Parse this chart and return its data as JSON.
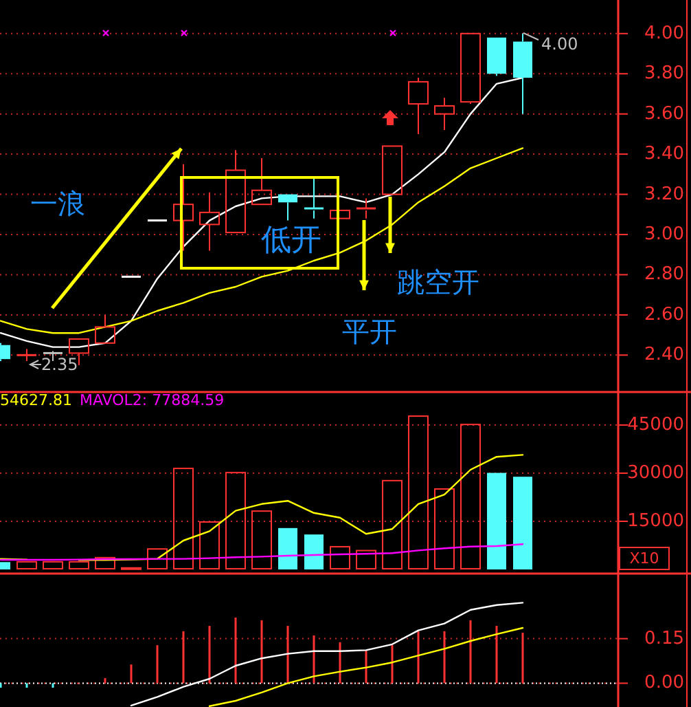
{
  "chart_data": [
    {
      "type": "candlestick",
      "categories": [
        null,
        null,
        null,
        null,
        null,
        null,
        null,
        null,
        null,
        null,
        null,
        null,
        null,
        null,
        null,
        null,
        null,
        null,
        null,
        null,
        null
      ],
      "ohlc": [
        [
          2.45,
          2.46,
          2.37,
          2.38
        ],
        [
          2.4,
          2.43,
          2.37,
          2.4
        ],
        [
          2.41,
          2.42,
          2.37,
          2.41
        ],
        [
          2.41,
          2.48,
          2.35,
          2.48
        ],
        [
          2.46,
          2.6,
          2.46,
          2.54
        ],
        [
          2.79,
          2.79,
          2.79,
          2.79
        ],
        [
          3.07,
          3.07,
          3.07,
          3.07
        ],
        [
          3.07,
          3.35,
          2.92,
          3.15
        ],
        [
          3.05,
          3.21,
          2.92,
          3.11
        ],
        [
          3.01,
          3.42,
          3.01,
          3.32
        ],
        [
          3.15,
          3.38,
          3.15,
          3.22
        ],
        [
          3.2,
          3.2,
          3.07,
          3.16
        ],
        [
          3.13,
          3.28,
          3.08,
          3.12
        ],
        [
          3.08,
          3.12,
          3.08,
          3.12
        ],
        [
          3.12,
          3.18,
          3.08,
          3.13
        ],
        [
          3.2,
          3.44,
          3.2,
          3.44
        ],
        [
          3.65,
          3.78,
          3.5,
          3.76
        ],
        [
          3.6,
          3.68,
          3.52,
          3.64
        ],
        [
          3.66,
          4.0,
          3.65,
          4.0
        ],
        [
          3.98,
          3.98,
          3.79,
          3.8
        ],
        [
          3.96,
          4.0,
          3.6,
          3.78
        ]
      ],
      "colors": [
        "#54fcfc",
        "#ff3232",
        "#c0c0c0",
        "#ff3232",
        "#ff3232",
        "#ffffff",
        "#ffffff",
        "#ff3232",
        "#ff3232",
        "#ff3232",
        "#ff3232",
        "#54fcfc",
        "#54fcfc",
        "#ff3232",
        "#ff3232",
        "#ff3232",
        "#ff3232",
        "#ff3232",
        "#ff3232",
        "#54fcfc",
        "#54fcfc"
      ],
      "series": [
        {
          "type": "line",
          "color": "#ffffff",
          "values": [
            2.51,
            2.47,
            2.44,
            2.44,
            2.46,
            2.57,
            2.78,
            2.94,
            3.07,
            3.14,
            3.18,
            3.19,
            3.19,
            3.19,
            3.16,
            3.2,
            3.3,
            3.41,
            3.6,
            3.75,
            3.78
          ]
        },
        {
          "type": "line",
          "color": "#ffff00",
          "values": [
            2.57,
            2.53,
            2.51,
            2.51,
            2.54,
            2.57,
            2.62,
            2.66,
            2.71,
            2.74,
            2.79,
            2.82,
            2.87,
            2.91,
            2.97,
            3.05,
            3.16,
            3.24,
            3.33,
            3.38,
            3.43
          ]
        }
      ],
      "ylim": [
        2.23,
        4.167
      ],
      "yticks": [
        {
          "value": 2.4,
          "label": "2.40"
        },
        {
          "value": 2.6,
          "label": "2.60"
        },
        {
          "value": 2.8,
          "label": "2.80"
        },
        {
          "value": 3.0,
          "label": "3.00"
        },
        {
          "value": 3.2,
          "label": "3.20"
        },
        {
          "value": 3.4,
          "label": "3.40"
        },
        {
          "value": 3.6,
          "label": "3.60"
        },
        {
          "value": 3.8,
          "label": "3.80"
        },
        {
          "value": 4.0,
          "label": "4.00"
        }
      ],
      "grid": "y",
      "tick_labels": "y",
      "annotations": [
        "一浪",
        "低开",
        "平开",
        "跳空开",
        "4.00",
        "2.35"
      ]
    },
    {
      "type": "bar",
      "categories": [
        null,
        null,
        null,
        null,
        null,
        null,
        null,
        null,
        null,
        null,
        null,
        null,
        null,
        null,
        null,
        null,
        null,
        null,
        null,
        null,
        null
      ],
      "series": [
        {
          "type": "bar",
          "values": [
            2300,
            2600,
            2600,
            2600,
            3900,
            700,
            6600,
            31700,
            15000,
            30400,
            18400,
            12900,
            10900,
            7300,
            6100,
            27900,
            48000,
            25300,
            45400,
            30100,
            28900
          ],
          "colors": [
            "#54fcfc",
            "#ff3232",
            "#ff3232",
            "#ff3232",
            "#ff3232",
            "#ff3232",
            "#ff3232",
            "#ff3232",
            "#ff3232",
            "#ff3232",
            "#ff3232",
            "#54fcfc",
            "#54fcfc",
            "#ff3232",
            "#ff3232",
            "#ff3232",
            "#ff3232",
            "#ff3232",
            "#ff3232",
            "#54fcfc",
            "#54fcfc"
          ]
        },
        {
          "type": "line",
          "color": "#ffff00",
          "values": [
            3300,
            3100,
            null,
            2900,
            2900,
            3100,
            3300,
            9000,
            11900,
            18300,
            20400,
            21400,
            17600,
            16100,
            11100,
            12600,
            20400,
            23300,
            31100,
            35100,
            35700
          ]
        },
        {
          "type": "line",
          "color": "#ff00ff",
          "values": [
            3000,
            3000,
            3000,
            3100,
            3200,
            3200,
            3300,
            3300,
            3500,
            3800,
            4000,
            4300,
            4500,
            4700,
            4900,
            5100,
            5900,
            6600,
            7100,
            7300,
            7900
          ]
        }
      ],
      "ylim": [
        0,
        55300
      ],
      "yticks": [
        15000,
        30000,
        45000
      ],
      "grid": "y",
      "tick_labels": "y",
      "annotations": [
        "54627.81",
        "MAVOL2: 77884.59",
        "X10"
      ]
    },
    {
      "type": "bar",
      "categories": [
        null,
        null,
        null,
        null,
        null,
        null,
        null,
        null,
        null,
        null,
        null,
        null,
        null,
        null,
        null,
        null,
        null,
        null,
        null,
        null,
        null
      ],
      "series": [
        {
          "type": "bar",
          "values": [
            -0.015,
            -0.015,
            -0.015,
            0.0,
            0.017,
            0.063,
            0.128,
            0.175,
            0.193,
            0.221,
            0.212,
            0.193,
            0.161,
            0.138,
            0.11,
            0.128,
            0.175,
            0.175,
            0.212,
            0.193,
            0.17
          ],
          "colors": [
            "#54fcfc",
            "#54fcfc",
            "#54fcfc",
            "#ff3232",
            "#ff3232",
            "#ff3232",
            "#ff3232",
            "#ff3232",
            "#ff3232",
            "#ff3232",
            "#ff3232",
            "#ff3232",
            "#ff3232",
            "#ff3232",
            "#ff3232",
            "#ff3232",
            "#ff3232",
            "#ff3232",
            "#ff3232",
            "#ff3232",
            "#ff3232"
          ]
        },
        {
          "type": "line",
          "color": "#ffffff",
          "values": [
            null,
            null,
            null,
            null,
            null,
            -0.075,
            -0.046,
            -0.012,
            0.015,
            0.059,
            0.084,
            0.099,
            0.108,
            0.108,
            0.111,
            0.131,
            0.178,
            0.201,
            0.247,
            0.263,
            0.271
          ]
        },
        {
          "type": "line",
          "color": "#ffff00",
          "values": [
            null,
            null,
            null,
            null,
            null,
            null,
            null,
            null,
            -0.077,
            -0.059,
            -0.031,
            0.0,
            0.023,
            0.039,
            0.053,
            0.07,
            0.093,
            0.116,
            0.142,
            0.165,
            0.186
          ]
        }
      ],
      "ylim": [
        -0.08,
        0.369
      ],
      "yticks": [
        {
          "value": 0,
          "label": "0.00"
        },
        {
          "value": 0.15,
          "label": "0.15"
        }
      ],
      "grid": "y",
      "tick_labels": "y",
      "ref_lines": [
        {
          "axis": "y",
          "value": 0,
          "color": "#ffffff",
          "line_style": "dotted"
        }
      ]
    }
  ]
}
